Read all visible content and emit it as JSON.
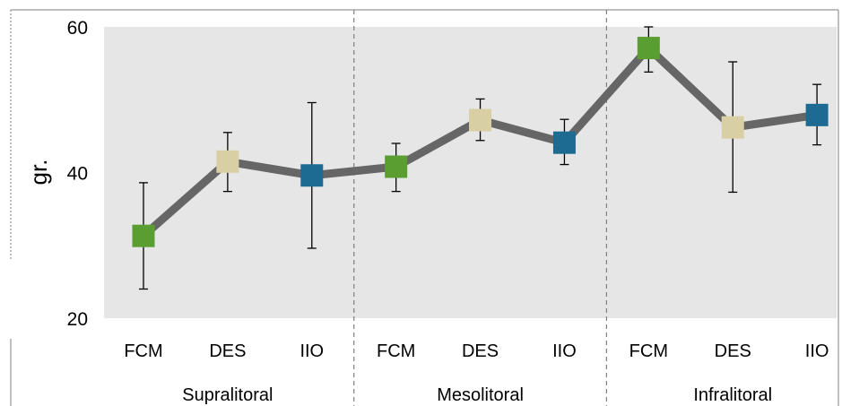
{
  "chart_data": {
    "type": "line",
    "title": "",
    "xlabel": "",
    "ylabel": "gr.",
    "ylim": [
      20,
      60
    ],
    "yticks": [
      "20",
      "40",
      "60"
    ],
    "grid": false,
    "groups": [
      {
        "label": "Supralitoral",
        "categories": [
          "FCM",
          "DES",
          "IIO"
        ]
      },
      {
        "label": "Mesolitoral",
        "categories": [
          "FCM",
          "DES",
          "IIO"
        ]
      },
      {
        "label": "Infralitoral",
        "categories": [
          "FCM",
          "DES",
          "IIO"
        ]
      }
    ],
    "series": [
      {
        "values": [
          31.3,
          41.5,
          39.6,
          40.8,
          47.2,
          44.1,
          57.1,
          46.2,
          47.9
        ],
        "error_low": [
          24.0,
          37.4,
          29.6,
          37.4,
          44.4,
          41.1,
          53.8,
          37.3,
          43.8
        ],
        "error_high": [
          38.6,
          45.5,
          49.6,
          44.0,
          50.1,
          47.3,
          60.0,
          55.2,
          52.1
        ]
      }
    ],
    "colors": {
      "plot_area": "#e6e6e6",
      "line": "#666666",
      "FCM": "#5a9e32",
      "DES": "#d9cfa4",
      "IIO": "#1d6a93",
      "separator": "#7f7f7f"
    }
  }
}
